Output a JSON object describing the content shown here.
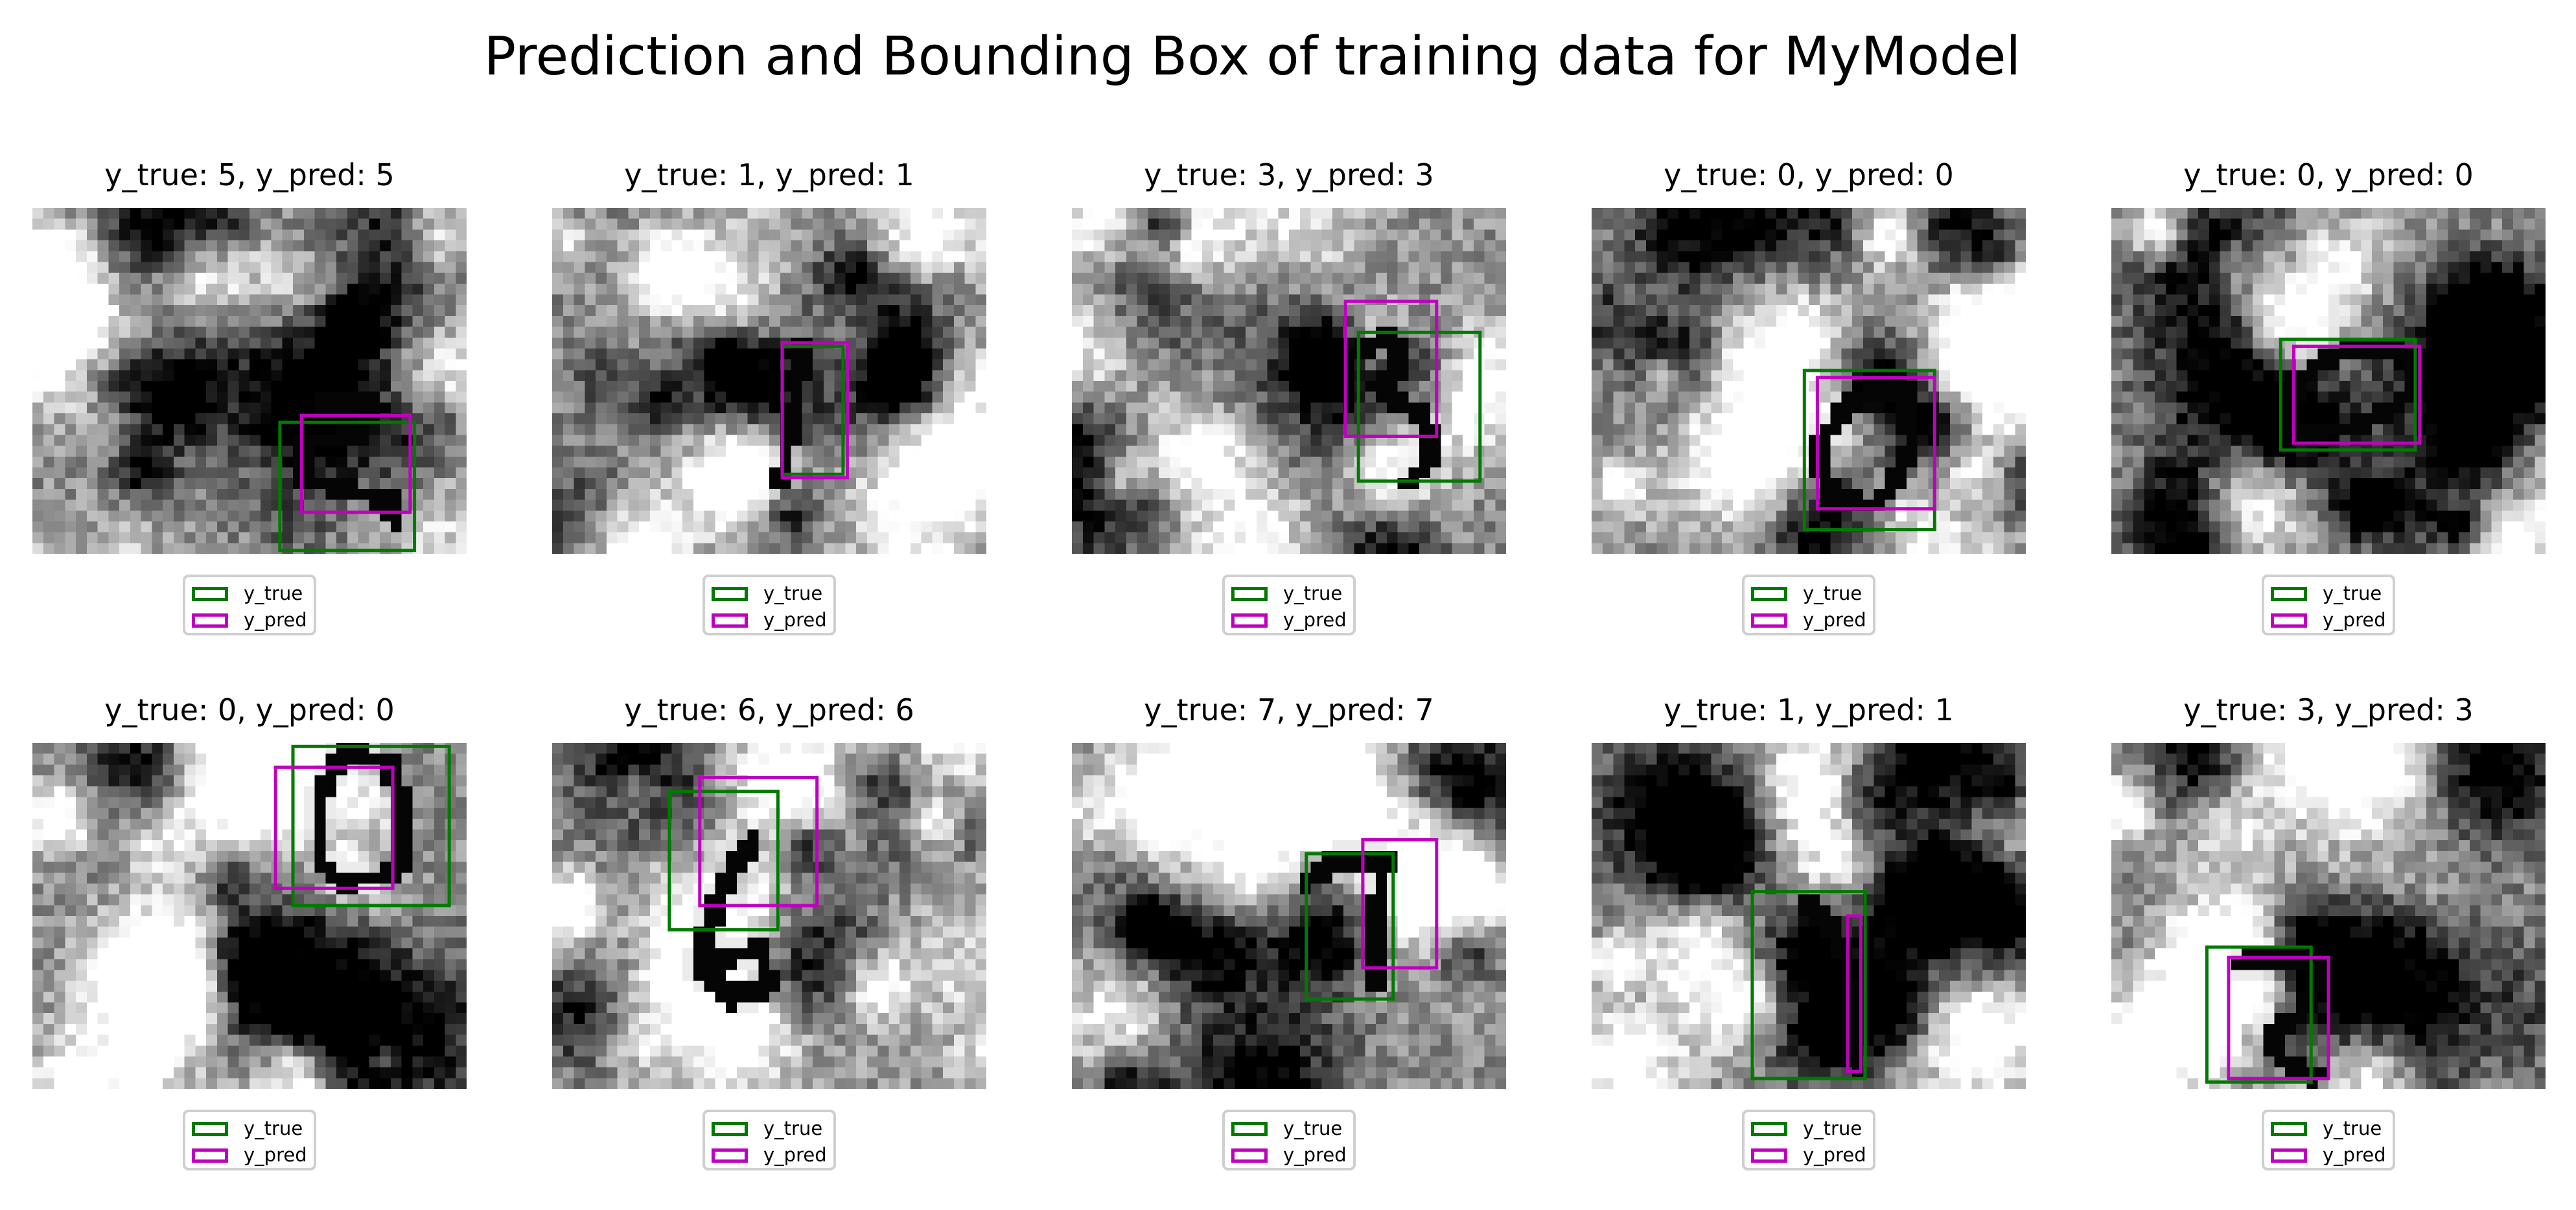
{
  "chart": {
    "title": "Prediction and Bounding Box of training data for MyModel",
    "legend": {
      "items": [
        "y_true",
        "y_pred"
      ]
    },
    "colors": {
      "y_true": "#007a00",
      "y_pred": "#bf00bf"
    }
  },
  "chart_data": [
    {
      "type": "image",
      "title": "y_true: 5, y_pred: 5",
      "y_true_label": 5,
      "y_pred_label": 5,
      "digit_path": [
        [
          0.66,
          0.57
        ],
        [
          0.78,
          0.56
        ],
        [
          0.76,
          0.66
        ],
        [
          0.62,
          0.68
        ],
        [
          0.62,
          0.78
        ],
        [
          0.72,
          0.82
        ],
        [
          0.82,
          0.84
        ],
        [
          0.84,
          0.9
        ]
      ],
      "y_true_box": [
        0.57,
        0.62,
        0.88,
        0.99
      ],
      "y_pred_box": [
        0.62,
        0.6,
        0.87,
        0.88
      ]
    },
    {
      "type": "image",
      "title": "y_true: 1, y_pred: 1",
      "y_true_label": 1,
      "y_pred_label": 1,
      "digit_path": [
        [
          0.58,
          0.4
        ],
        [
          0.56,
          0.55
        ],
        [
          0.54,
          0.7
        ],
        [
          0.53,
          0.78
        ]
      ],
      "y_true_box": [
        0.53,
        0.4,
        0.67,
        0.77
      ],
      "y_pred_box": [
        0.53,
        0.39,
        0.68,
        0.78
      ]
    },
    {
      "type": "image",
      "title": "y_true: 3, y_pred: 3",
      "y_true_label": 3,
      "y_pred_label": 3,
      "digit_path": [
        [
          0.67,
          0.4
        ],
        [
          0.74,
          0.37
        ],
        [
          0.76,
          0.46
        ],
        [
          0.7,
          0.52
        ],
        [
          0.8,
          0.6
        ],
        [
          0.84,
          0.72
        ],
        [
          0.78,
          0.79
        ]
      ],
      "y_true_box": [
        0.66,
        0.36,
        0.94,
        0.79
      ],
      "y_pred_box": [
        0.63,
        0.27,
        0.84,
        0.66
      ]
    },
    {
      "type": "image",
      "title": "y_true: 0, y_pred: 0",
      "y_true_label": 0,
      "y_pred_label": 0,
      "digit_path": [
        [
          0.65,
          0.52
        ],
        [
          0.58,
          0.58
        ],
        [
          0.52,
          0.7
        ],
        [
          0.55,
          0.85
        ],
        [
          0.66,
          0.86
        ],
        [
          0.74,
          0.7
        ],
        [
          0.72,
          0.52
        ],
        [
          0.65,
          0.52
        ]
      ],
      "y_true_box": [
        0.49,
        0.47,
        0.79,
        0.93
      ],
      "y_pred_box": [
        0.52,
        0.49,
        0.79,
        0.87
      ]
    },
    {
      "type": "image",
      "title": "y_true: 0, y_pred: 0",
      "y_true_label": 0,
      "y_pred_label": 0,
      "digit_path": [
        [
          0.55,
          0.4
        ],
        [
          0.42,
          0.5
        ],
        [
          0.41,
          0.65
        ],
        [
          0.55,
          0.64
        ],
        [
          0.68,
          0.55
        ],
        [
          0.7,
          0.43
        ],
        [
          0.62,
          0.4
        ],
        [
          0.55,
          0.4
        ]
      ],
      "y_true_box": [
        0.39,
        0.38,
        0.7,
        0.7
      ],
      "y_pred_box": [
        0.42,
        0.4,
        0.71,
        0.68
      ]
    },
    {
      "type": "image",
      "title": "y_true: 0, y_pred: 0",
      "y_true_label": 0,
      "y_pred_label": 0,
      "digit_path": [
        [
          0.72,
          0.02
        ],
        [
          0.66,
          0.15
        ],
        [
          0.66,
          0.35
        ],
        [
          0.72,
          0.4
        ],
        [
          0.84,
          0.38
        ],
        [
          0.86,
          0.22
        ],
        [
          0.82,
          0.06
        ],
        [
          0.72,
          0.02
        ]
      ],
      "y_true_box": [
        0.6,
        0.01,
        0.96,
        0.47
      ],
      "y_pred_box": [
        0.56,
        0.07,
        0.83,
        0.42
      ]
    },
    {
      "type": "image",
      "title": "y_true: 6, y_pred: 6",
      "y_true_label": 6,
      "y_pred_label": 6,
      "digit_path": [
        [
          0.46,
          0.28
        ],
        [
          0.38,
          0.45
        ],
        [
          0.34,
          0.65
        ],
        [
          0.42,
          0.74
        ],
        [
          0.5,
          0.7
        ],
        [
          0.48,
          0.6
        ],
        [
          0.4,
          0.62
        ]
      ],
      "y_true_box": [
        0.27,
        0.14,
        0.52,
        0.54
      ],
      "y_pred_box": [
        0.34,
        0.1,
        0.61,
        0.47
      ]
    },
    {
      "type": "image",
      "title": "y_true: 7, y_pred: 7",
      "y_true_label": 7,
      "y_pred_label": 7,
      "digit_path": [
        [
          0.54,
          0.4
        ],
        [
          0.62,
          0.33
        ],
        [
          0.72,
          0.34
        ],
        [
          0.7,
          0.52
        ],
        [
          0.7,
          0.7
        ]
      ],
      "y_true_box": [
        0.54,
        0.32,
        0.74,
        0.74
      ],
      "y_pred_box": [
        0.67,
        0.28,
        0.84,
        0.65
      ]
    },
    {
      "type": "image",
      "title": "y_true: 1, y_pred: 1",
      "y_true_label": 1,
      "y_pred_label": 1,
      "digit_path": [
        [
          0.5,
          0.46
        ],
        [
          0.54,
          0.52
        ],
        [
          0.58,
          0.6
        ],
        [
          0.6,
          0.75
        ],
        [
          0.61,
          0.95
        ]
      ],
      "y_true_box": [
        0.37,
        0.43,
        0.63,
        0.97
      ],
      "y_pred_box": [
        0.59,
        0.5,
        0.62,
        0.95
      ]
    },
    {
      "type": "image",
      "title": "y_true: 3, y_pred: 3",
      "y_true_label": 3,
      "y_pred_label": 3,
      "digit_path": [
        [
          0.3,
          0.64
        ],
        [
          0.4,
          0.62
        ],
        [
          0.48,
          0.66
        ],
        [
          0.44,
          0.78
        ],
        [
          0.36,
          0.84
        ],
        [
          0.4,
          0.92
        ],
        [
          0.47,
          0.96
        ]
      ],
      "y_true_box": [
        0.22,
        0.59,
        0.46,
        0.98
      ],
      "y_pred_box": [
        0.27,
        0.62,
        0.5,
        0.97
      ]
    }
  ]
}
